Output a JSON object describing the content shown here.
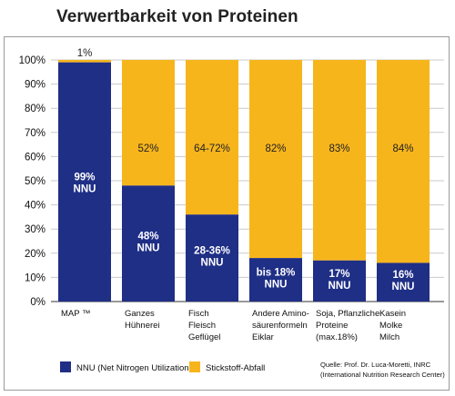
{
  "title": "Verwertbarkeit von Proteinen",
  "colors": {
    "nnu": "#1f2f86",
    "waste": "#f7b51c",
    "grid": "#c9c9c9",
    "axis": "#333333"
  },
  "chart_data": {
    "type": "bar",
    "stacked": true,
    "ylim": [
      0,
      100
    ],
    "yticks": [
      "0%",
      "10%",
      "20%",
      "30%",
      "40%",
      "50%",
      "60%",
      "70%",
      "80%",
      "90%",
      "100%"
    ],
    "grid": true,
    "categories": [
      [
        "MAP ™"
      ],
      [
        "Ganzes",
        "Hühnerei"
      ],
      [
        "Fisch",
        "Fleisch",
        "Geflügel"
      ],
      [
        "Andere Amino-",
        "säurenformeln",
        "Eiklar"
      ],
      [
        "Soja, Pflanzliche",
        "Proteine",
        "(max.18%)"
      ],
      [
        "Kasein",
        "Molke",
        "Milch"
      ]
    ],
    "series": [
      {
        "name": "NNU (Net Nitrogen Utilization",
        "values": [
          99,
          48,
          36,
          18,
          17,
          16
        ],
        "labels": [
          [
            "99%",
            "NNU"
          ],
          [
            "48%",
            "NNU"
          ],
          [
            "28-36%",
            "NNU"
          ],
          [
            "bis 18%",
            "NNU"
          ],
          [
            "17%",
            "NNU"
          ],
          [
            "16%",
            "NNU"
          ]
        ]
      },
      {
        "name": "Stickstoff-Abfall",
        "values": [
          1,
          52,
          64,
          82,
          83,
          84
        ],
        "labels": [
          [
            "1%"
          ],
          [
            "52%"
          ],
          [
            "64-72%"
          ],
          [
            "82%"
          ],
          [
            "83%"
          ],
          [
            "84%"
          ]
        ]
      }
    ],
    "legend_position": "bottom-left"
  },
  "source": [
    "Quelle: Prof. Dr. Luca-Moretti, INRC",
    "(International Nutrition Research Center)"
  ]
}
